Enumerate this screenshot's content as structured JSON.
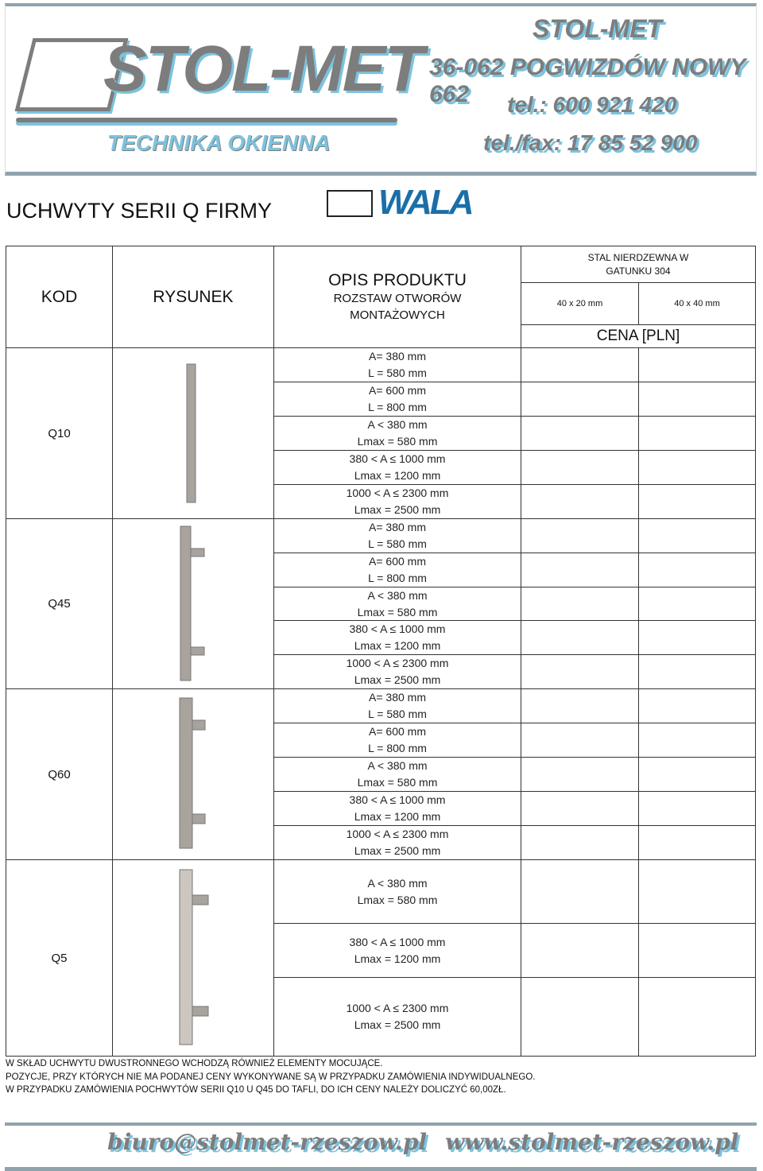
{
  "header": {
    "logo": "STOL-MET",
    "tagline": "TECHNIKA OKIENNA",
    "company": "STOL-MET",
    "address": "36-062 POGWIZDÓW NOWY 662",
    "phone": "tel.: 600 921 420",
    "fax": "tel./fax: 17 85 52 900"
  },
  "title": "UCHWYTY SERII Q FIRMY",
  "brand": "WALA",
  "table": {
    "headers": {
      "code": "KOD",
      "drawing": "RYSUNEK",
      "desc_title": "OPIS PRODUKTU",
      "desc_sub": "ROZSTAW OTWORÓW MONTAŻOWYCH",
      "material": "STAL NIERDZEWNA W GATUNKU 304",
      "size1": "40 x 20 mm",
      "size2": "40 x 40 mm",
      "price": "CENA [PLN]"
    },
    "products": [
      {
        "code": "Q10",
        "options": [
          [
            "A= 380 mm",
            "L = 580 mm"
          ],
          [
            "A= 600 mm",
            "L = 800 mm"
          ],
          [
            "A < 380 mm",
            "Lmax = 580 mm"
          ],
          [
            "380 < A ≤ 1000 mm",
            "Lmax = 1200 mm"
          ],
          [
            "1000 < A ≤ 2300 mm",
            "Lmax = 2500 mm"
          ]
        ]
      },
      {
        "code": "Q45",
        "options": [
          [
            "A= 380 mm",
            "L = 580 mm"
          ],
          [
            "A= 600 mm",
            "L = 800 mm"
          ],
          [
            "A < 380 mm",
            "Lmax = 580 mm"
          ],
          [
            "380 < A ≤ 1000 mm",
            "Lmax = 1200 mm"
          ],
          [
            "1000 < A ≤ 2300 mm",
            "Lmax = 2500 mm"
          ]
        ]
      },
      {
        "code": "Q60",
        "options": [
          [
            "A= 380 mm",
            "L = 580 mm"
          ],
          [
            "A= 600 mm",
            "L = 800 mm"
          ],
          [
            "A < 380 mm",
            "Lmax = 580 mm"
          ],
          [
            "380 < A ≤ 1000 mm",
            "Lmax = 1200 mm"
          ],
          [
            "1000 < A ≤ 2300 mm",
            "Lmax = 2500 mm"
          ]
        ]
      },
      {
        "code": "Q5",
        "options": [
          [
            "A < 380 mm",
            "Lmax = 580 mm"
          ],
          [
            "380 < A ≤ 1000 mm",
            "Lmax = 1200 mm"
          ],
          [
            "1000 < A ≤ 2300 mm",
            "Lmax = 2500 mm"
          ]
        ]
      }
    ]
  },
  "notes": [
    "W SKŁAD UCHWYTU DWUSTRONNEGO WCHODZĄ RÓWNIEŻ ELEMENTY MOCUJĄCE.",
    "POZYCJE, PRZY KTÓRYCH NIE MA PODANEJ CENY WYKONYWANE SĄ W PRZYPADKU ZAMÓWIENIA INDYWIDUALNEGO.",
    "W PRZYPADKU ZAMÓWIENIA POCHWYTÓW SERII Q10 U Q45 DO TAFLI, DO ICH CENY NALEŻY DOLICZYĆ 60,00ZŁ."
  ],
  "footer": {
    "email": "biuro@stolmet-rzeszow.pl",
    "website": "www.stolmet-rzeszow.pl"
  }
}
